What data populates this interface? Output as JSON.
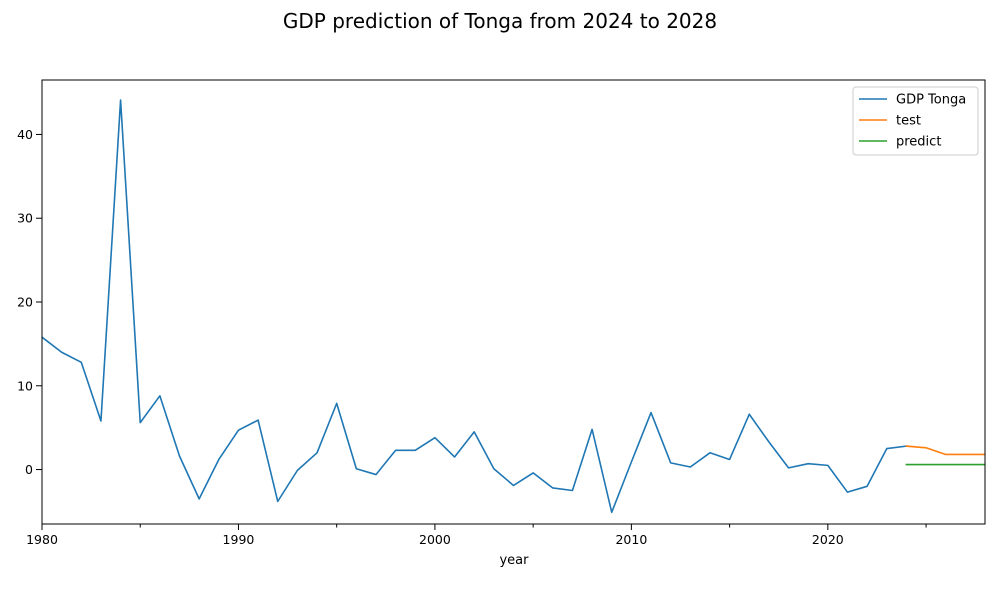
{
  "chart_data": {
    "type": "line",
    "title": "GDP prediction of Tonga from 2024 to 2028",
    "xlabel": "year",
    "ylabel": "",
    "xlim": [
      1980,
      2028
    ],
    "ylim": [
      -6.5,
      46.5
    ],
    "x_ticks": [
      1980,
      1990,
      2000,
      2010,
      2020
    ],
    "x_minor_ticks": [
      1985,
      1995,
      2005,
      2015,
      2025
    ],
    "y_ticks": [
      0,
      10,
      20,
      30,
      40
    ],
    "grid": false,
    "legend_position": "top-right",
    "series": [
      {
        "name": "GDP Tonga",
        "color": "#1f77b4",
        "x": [
          1980,
          1981,
          1982,
          1983,
          1984,
          1985,
          1986,
          1987,
          1988,
          1989,
          1990,
          1991,
          1992,
          1993,
          1994,
          1995,
          1996,
          1997,
          1998,
          1999,
          2000,
          2001,
          2002,
          2003,
          2004,
          2005,
          2006,
          2007,
          2008,
          2009,
          2010,
          2011,
          2012,
          2013,
          2014,
          2015,
          2016,
          2017,
          2018,
          2019,
          2020,
          2021,
          2022,
          2023,
          2024
        ],
        "values": [
          15.8,
          14.0,
          12.8,
          5.8,
          44.1,
          5.6,
          8.8,
          1.6,
          -3.5,
          1.2,
          4.7,
          5.9,
          -3.8,
          -0.1,
          2.0,
          7.9,
          0.1,
          -0.6,
          2.3,
          2.3,
          3.8,
          1.5,
          4.5,
          0.1,
          -1.9,
          -0.4,
          -2.2,
          -2.5,
          4.8,
          -5.1,
          0.9,
          6.8,
          0.8,
          0.3,
          2.0,
          1.2,
          6.6,
          3.3,
          0.2,
          0.7,
          0.5,
          -2.7,
          -2.0,
          2.5,
          2.8
        ]
      },
      {
        "name": "test",
        "color": "#ff7f0e",
        "x": [
          2024,
          2025,
          2026,
          2027,
          2028
        ],
        "values": [
          2.8,
          2.6,
          1.8,
          1.8,
          1.8
        ]
      },
      {
        "name": "predict",
        "color": "#2ca02c",
        "x": [
          2024,
          2025,
          2026,
          2027,
          2028
        ],
        "values": [
          0.6,
          0.6,
          0.6,
          0.6,
          0.6
        ]
      }
    ]
  }
}
